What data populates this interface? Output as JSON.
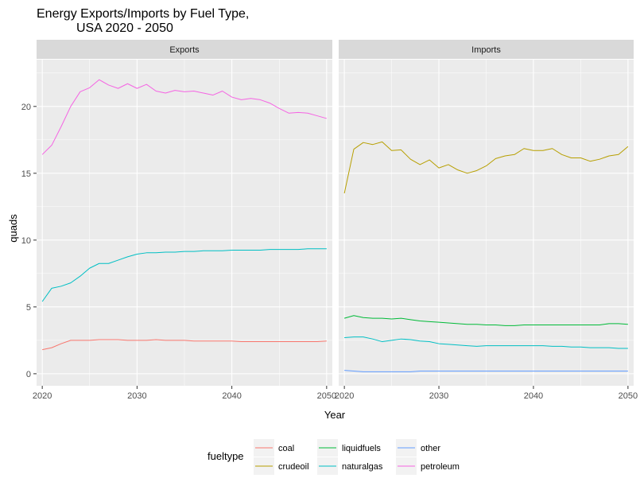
{
  "chart_data": {
    "type": "line",
    "title_line1": "Energy Exports/Imports by Fuel Type,",
    "title_line2": "USA 2020 - 2050",
    "xlabel": "Year",
    "ylabel": "quads",
    "xlim": [
      2019.4,
      2050.6
    ],
    "ylim": [
      -0.9,
      23.5
    ],
    "xticks": [
      2020,
      2030,
      2040,
      2050
    ],
    "yticks": [
      0,
      5,
      10,
      15,
      20
    ],
    "legend": {
      "title": "fueltype",
      "placement": "bottom",
      "order": [
        "coal",
        "crudeoil",
        "liquidfuels",
        "naturalgas",
        "other",
        "petroleum"
      ]
    },
    "colors": {
      "coal": "#F8766D",
      "crudeoil": "#B79F00",
      "liquidfuels": "#00BA38",
      "naturalgas": "#00BFC4",
      "other": "#619CFF",
      "petroleum": "#F564E3"
    },
    "x": [
      2020,
      2021,
      2022,
      2023,
      2024,
      2025,
      2026,
      2027,
      2028,
      2029,
      2030,
      2031,
      2032,
      2033,
      2034,
      2035,
      2036,
      2037,
      2038,
      2039,
      2040,
      2041,
      2042,
      2043,
      2044,
      2045,
      2046,
      2047,
      2048,
      2049,
      2050
    ],
    "panels": [
      {
        "strip": "Exports",
        "series": [
          {
            "name": "petroleum",
            "values": [
              16.4,
              17.1,
              18.5,
              20.0,
              21.1,
              21.4,
              22.0,
              21.6,
              21.35,
              21.7,
              21.35,
              21.65,
              21.15,
              21.0,
              21.2,
              21.1,
              21.15,
              21.0,
              20.85,
              21.15,
              20.7,
              20.5,
              20.6,
              20.5,
              20.25,
              19.85,
              19.5,
              19.55,
              19.5,
              19.3,
              19.1
            ]
          },
          {
            "name": "naturalgas",
            "values": [
              5.4,
              6.4,
              6.55,
              6.8,
              7.3,
              7.9,
              8.25,
              8.25,
              8.5,
              8.75,
              8.95,
              9.05,
              9.05,
              9.1,
              9.1,
              9.15,
              9.15,
              9.2,
              9.2,
              9.2,
              9.25,
              9.25,
              9.25,
              9.25,
              9.3,
              9.3,
              9.3,
              9.3,
              9.35,
              9.35,
              9.35
            ]
          },
          {
            "name": "coal",
            "values": [
              1.8,
              1.95,
              2.25,
              2.5,
              2.5,
              2.5,
              2.55,
              2.55,
              2.55,
              2.5,
              2.5,
              2.5,
              2.55,
              2.5,
              2.5,
              2.5,
              2.45,
              2.45,
              2.45,
              2.45,
              2.45,
              2.4,
              2.4,
              2.4,
              2.4,
              2.4,
              2.4,
              2.4,
              2.4,
              2.4,
              2.45
            ]
          }
        ]
      },
      {
        "strip": "Imports",
        "series": [
          {
            "name": "crudeoil",
            "values": [
              13.5,
              16.8,
              17.3,
              17.15,
              17.35,
              16.7,
              16.75,
              16.05,
              15.65,
              16.0,
              15.4,
              15.65,
              15.25,
              15.0,
              15.2,
              15.55,
              16.1,
              16.3,
              16.4,
              16.85,
              16.7,
              16.7,
              16.85,
              16.4,
              16.15,
              16.15,
              15.9,
              16.05,
              16.3,
              16.4,
              17.0
            ]
          },
          {
            "name": "liquidfuels",
            "values": [
              4.15,
              4.35,
              4.2,
              4.15,
              4.15,
              4.1,
              4.15,
              4.05,
              3.95,
              3.9,
              3.85,
              3.8,
              3.75,
              3.7,
              3.7,
              3.65,
              3.65,
              3.6,
              3.6,
              3.65,
              3.65,
              3.65,
              3.65,
              3.65,
              3.65,
              3.65,
              3.65,
              3.65,
              3.75,
              3.75,
              3.7
            ]
          },
          {
            "name": "naturalgas",
            "values": [
              2.7,
              2.75,
              2.75,
              2.6,
              2.4,
              2.5,
              2.6,
              2.55,
              2.45,
              2.4,
              2.25,
              2.2,
              2.15,
              2.1,
              2.05,
              2.1,
              2.1,
              2.1,
              2.1,
              2.1,
              2.1,
              2.1,
              2.05,
              2.05,
              2.0,
              2.0,
              1.95,
              1.95,
              1.95,
              1.9,
              1.9
            ]
          },
          {
            "name": "other",
            "values": [
              0.25,
              0.2,
              0.15,
              0.15,
              0.15,
              0.15,
              0.15,
              0.15,
              0.2,
              0.2,
              0.2,
              0.2,
              0.2,
              0.2,
              0.2,
              0.2,
              0.2,
              0.2,
              0.2,
              0.2,
              0.2,
              0.2,
              0.2,
              0.2,
              0.2,
              0.2,
              0.2,
              0.2,
              0.2,
              0.2,
              0.2
            ]
          }
        ]
      }
    ]
  }
}
